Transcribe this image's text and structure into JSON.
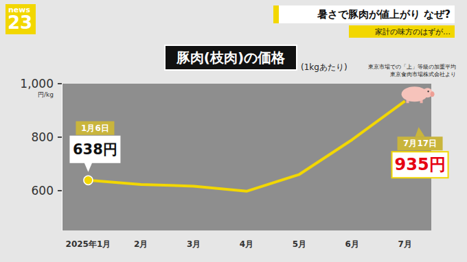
{
  "chart_data": {
    "type": "line",
    "title": "豚肉(枝肉)の価格",
    "subtitle": "(1kgあたり)",
    "source": [
      "東京市場での「上」等級の加重平均",
      "東京食肉市場株式会社より"
    ],
    "header": {
      "logo": [
        "news",
        "23"
      ],
      "headline": "暑さで豚肉が値上がり なぜ?",
      "subheadline": "家計の味方のはずが…"
    },
    "y_label": "円/kg",
    "categories": [
      "2025年1月",
      "2月",
      "3月",
      "4月",
      "5月",
      "6月",
      "7月"
    ],
    "values": [
      638,
      622,
      616,
      597,
      660,
      790,
      935
    ],
    "color": "#f2d700",
    "marker": "circle",
    "ylim": [
      450,
      1000
    ],
    "yticks": [
      600,
      800,
      1000
    ],
    "grid": false,
    "annotations": [
      {
        "x": "2025年1月",
        "date": "1月6日",
        "label": "638円"
      },
      {
        "x": "7月",
        "date": "7月17日",
        "label": "935円"
      }
    ]
  }
}
